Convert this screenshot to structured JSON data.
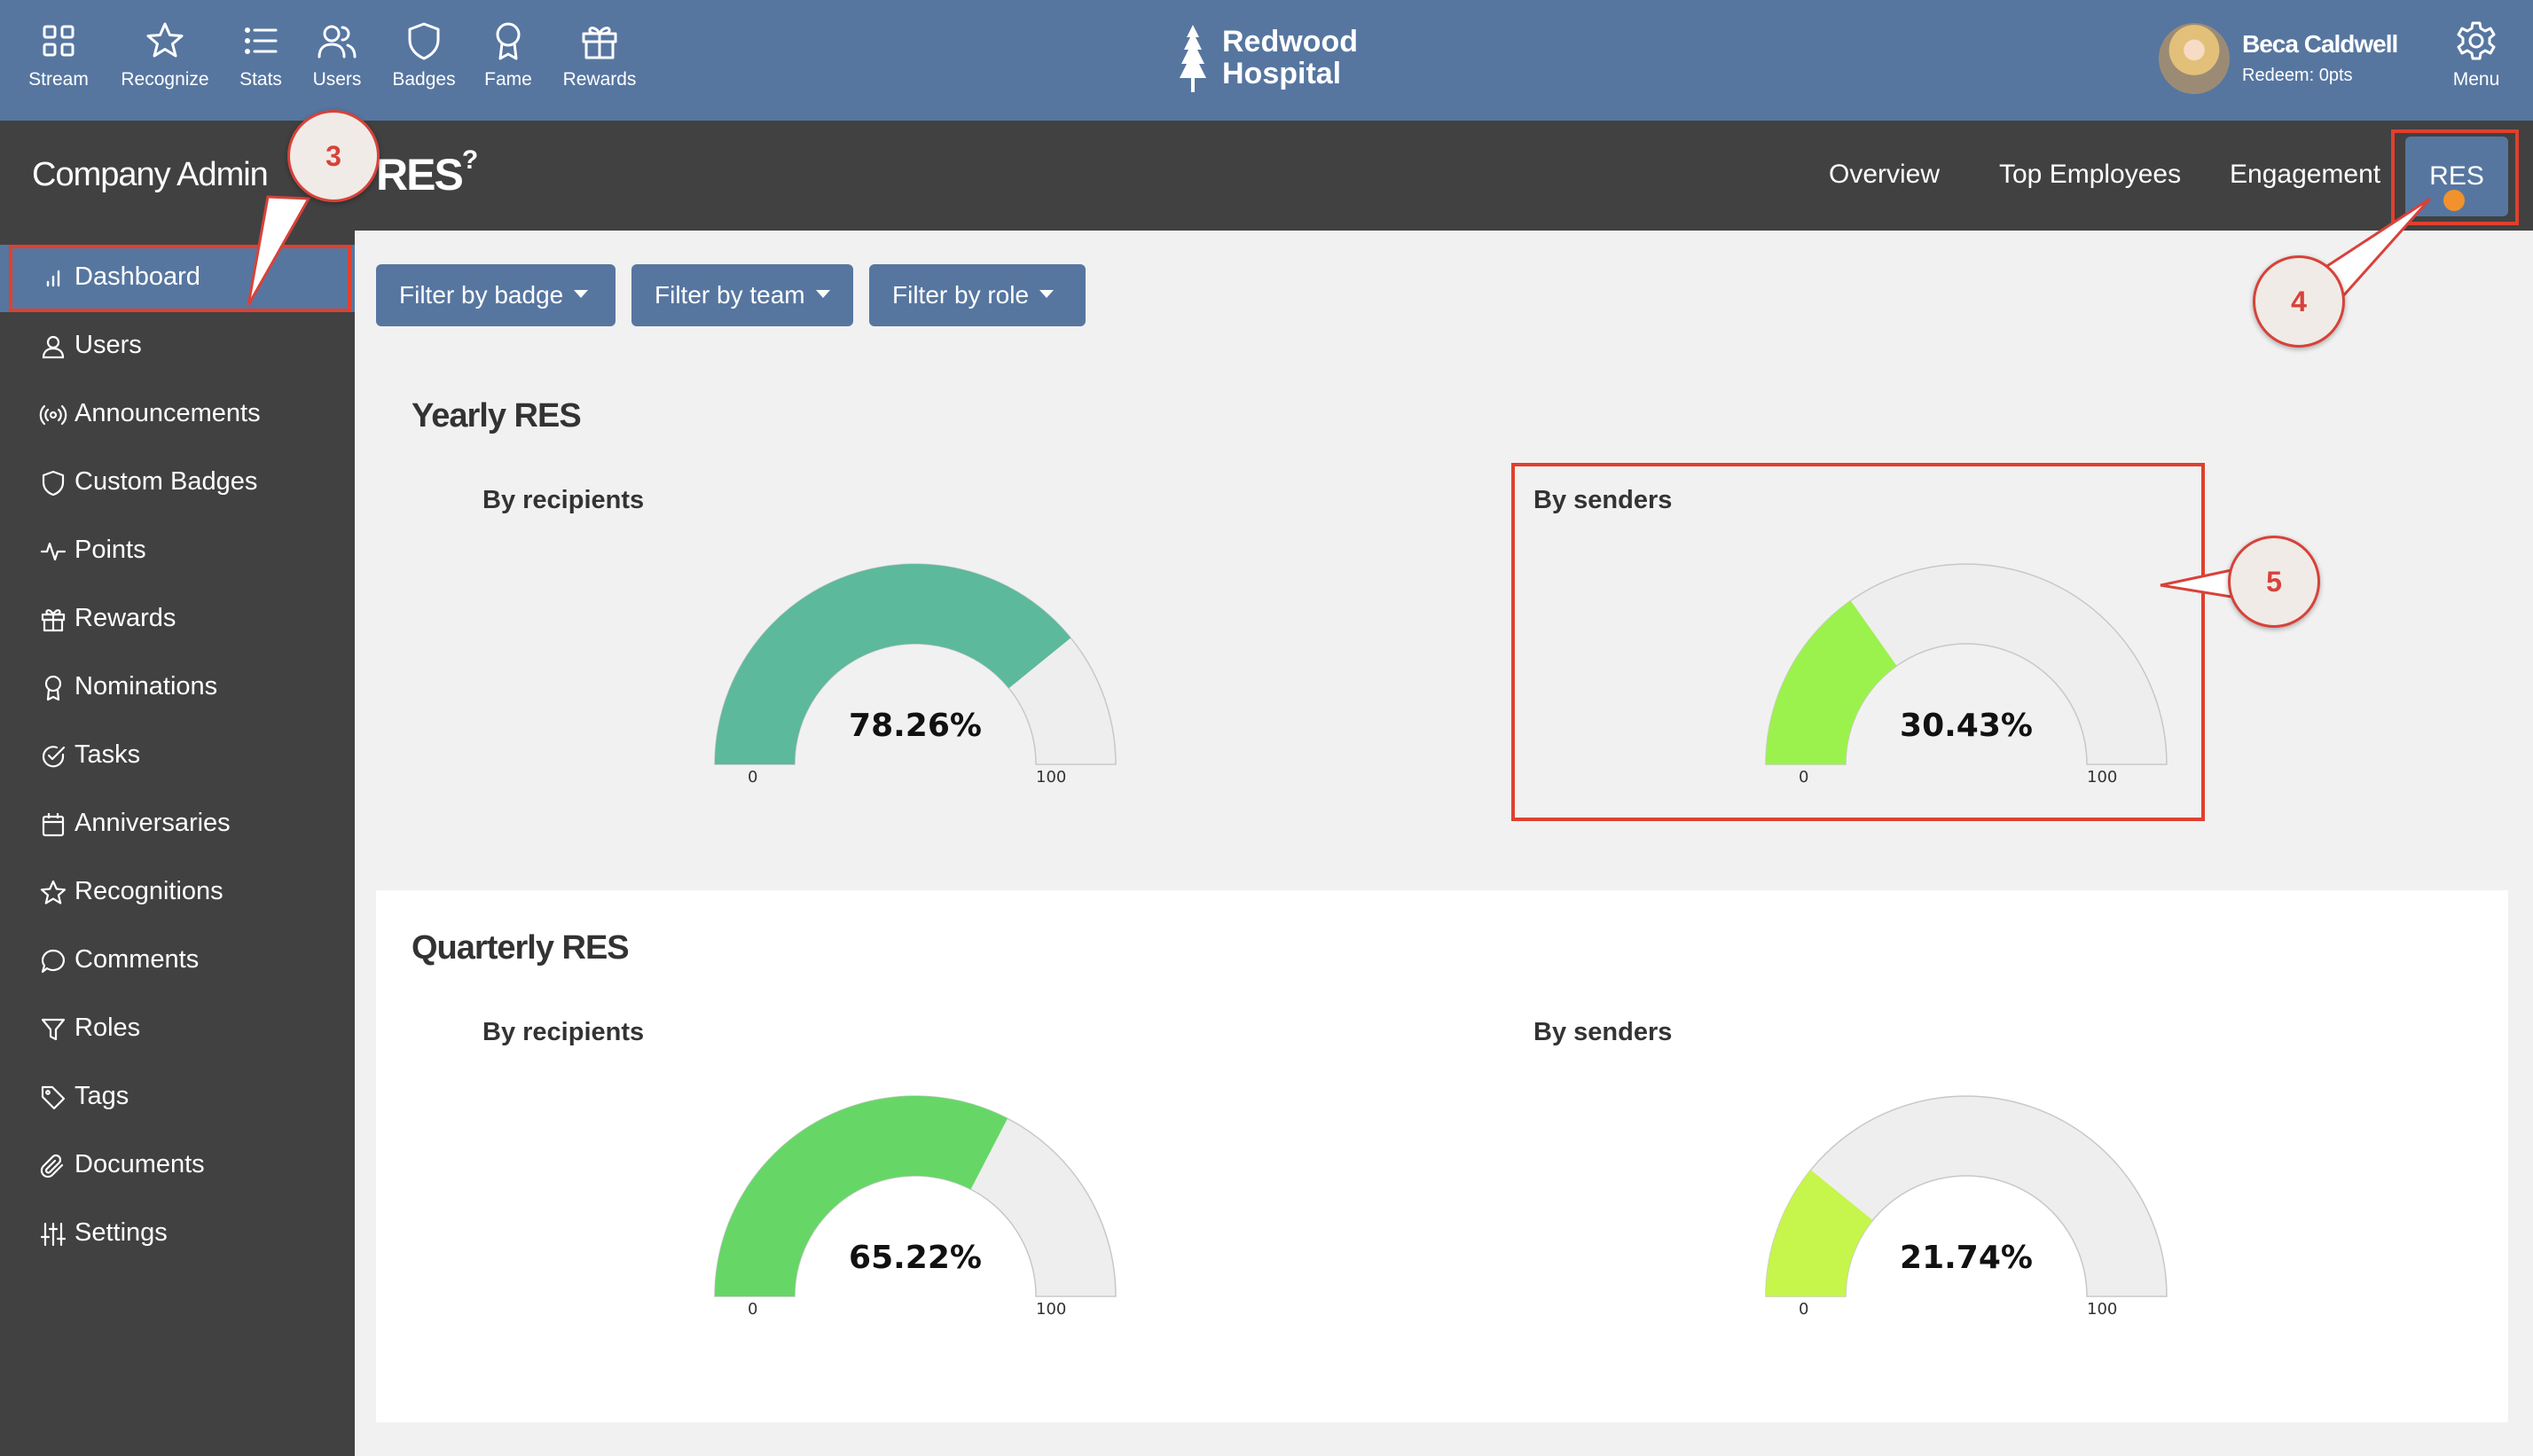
{
  "topnav": {
    "items": [
      {
        "label": "Stream",
        "icon": "grid-icon"
      },
      {
        "label": "Recognize",
        "icon": "star-icon"
      },
      {
        "label": "Stats",
        "icon": "list-icon"
      },
      {
        "label": "Users",
        "icon": "users-icon"
      },
      {
        "label": "Badges",
        "icon": "shield-icon"
      },
      {
        "label": "Fame",
        "icon": "award-icon"
      },
      {
        "label": "Rewards",
        "icon": "gift-icon"
      }
    ],
    "menu_label": "Menu"
  },
  "logo": {
    "line1": "Redwood",
    "line2": "Hospital"
  },
  "user": {
    "name": "Beca Caldwell",
    "redeem": "Redeem: 0pts"
  },
  "header": {
    "section": "Company Admin",
    "title": "RES",
    "title_sup": "?",
    "tabs": [
      "Overview",
      "Top Employees",
      "Engagement",
      "RES"
    ]
  },
  "sidebar": {
    "items": [
      {
        "label": "Dashboard",
        "icon": "bar-chart-icon"
      },
      {
        "label": "Users",
        "icon": "user-icon"
      },
      {
        "label": "Announcements",
        "icon": "broadcast-icon"
      },
      {
        "label": "Custom Badges",
        "icon": "shield-icon"
      },
      {
        "label": "Points",
        "icon": "activity-icon"
      },
      {
        "label": "Rewards",
        "icon": "gift-icon"
      },
      {
        "label": "Nominations",
        "icon": "award-icon"
      },
      {
        "label": "Tasks",
        "icon": "check-circle-icon"
      },
      {
        "label": "Anniversaries",
        "icon": "calendar-icon"
      },
      {
        "label": "Recognitions",
        "icon": "star-icon"
      },
      {
        "label": "Comments",
        "icon": "comment-icon"
      },
      {
        "label": "Roles",
        "icon": "filter-icon"
      },
      {
        "label": "Tags",
        "icon": "tag-icon"
      },
      {
        "label": "Documents",
        "icon": "paperclip-icon"
      },
      {
        "label": "Settings",
        "icon": "sliders-icon"
      }
    ]
  },
  "filters": [
    "Filter by badge",
    "Filter by team",
    "Filter by role"
  ],
  "yearly": {
    "title": "Yearly RES",
    "recipients": {
      "label": "By recipients",
      "value": 78.26,
      "display": "78.26%",
      "min": "0",
      "max": "100",
      "color": "#5cb99c"
    },
    "senders": {
      "label": "By senders",
      "value": 30.43,
      "display": "30.43%",
      "min": "0",
      "max": "100",
      "color": "#9cf24c"
    }
  },
  "quarterly": {
    "title": "Quarterly RES",
    "recipients": {
      "label": "By recipients",
      "value": 65.22,
      "display": "65.22%",
      "min": "0",
      "max": "100",
      "color": "#66d766"
    },
    "senders": {
      "label": "By senders",
      "value": 21.74,
      "display": "21.74%",
      "min": "0",
      "max": "100",
      "color": "#c6f54c"
    }
  },
  "annotations": [
    "3",
    "4",
    "5"
  ],
  "colors": {
    "nav_bg": "#5676a0",
    "dark_bg": "#414141",
    "annotation": "#d7423a",
    "gauge_track": "#eeeeee"
  }
}
